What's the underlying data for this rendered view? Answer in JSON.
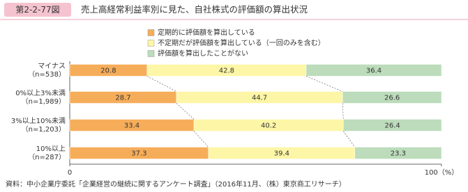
{
  "figure_label": "第2-2-77図",
  "chart_data": {
    "type": "stacked_barh",
    "title": "売上高経常利益率別に見た、自社株式の評価額の算出状況",
    "categories": [
      [
        "マイナス",
        "（n=538）"
      ],
      [
        "0%以上3%未満",
        "（n=1,989）"
      ],
      [
        "3%以上10%未満",
        "（n=1,203）"
      ],
      [
        "10%以上",
        "（n=287）"
      ]
    ],
    "series": [
      {
        "name": "定期的に評価額を算出している",
        "color": "#f6ad5a",
        "values": [
          20.8,
          28.7,
          33.4,
          37.3
        ]
      },
      {
        "name": "不定期だが評価額を算出している（一回のみを含む）",
        "color": "#fdf6a6",
        "values": [
          42.8,
          44.7,
          40.2,
          39.4
        ]
      },
      {
        "name": "評価額を算出したことがない",
        "color": "#bcdcbb",
        "values": [
          36.4,
          26.6,
          26.4,
          23.3
        ]
      }
    ],
    "xlim": [
      0,
      100
    ],
    "xticks": [
      0,
      {
        "value": 100,
        "label": "100（%）"
      }
    ],
    "source": "資料：中小企業庁委託「企業経営の継続に関するアンケート調査」（2016年11月、（株）東京商工リサーチ）"
  }
}
